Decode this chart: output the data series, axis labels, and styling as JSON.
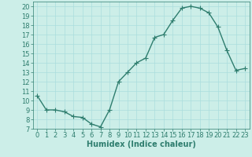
{
  "x": [
    0,
    1,
    2,
    3,
    4,
    5,
    6,
    7,
    8,
    9,
    10,
    11,
    12,
    13,
    14,
    15,
    16,
    17,
    18,
    19,
    20,
    21,
    22,
    23
  ],
  "y": [
    10.5,
    9.0,
    9.0,
    8.8,
    8.3,
    8.2,
    7.5,
    7.2,
    9.0,
    12.0,
    13.0,
    14.0,
    14.5,
    16.7,
    17.0,
    18.5,
    19.8,
    20.0,
    19.8,
    19.3,
    17.8,
    15.3,
    13.2,
    13.4
  ],
  "line_color": "#2e7d6e",
  "marker": "+",
  "bg_color": "#cceee8",
  "grid_color": "#aadddd",
  "xlabel": "Humidex (Indice chaleur)",
  "ylabel_ticks": [
    7,
    8,
    9,
    10,
    11,
    12,
    13,
    14,
    15,
    16,
    17,
    18,
    19,
    20
  ],
  "xlim": [
    -0.5,
    23.5
  ],
  "ylim": [
    7,
    20.5
  ],
  "xlabel_fontsize": 7,
  "tick_fontsize": 6,
  "line_width": 1.0,
  "marker_size": 4,
  "xticks": [
    0,
    1,
    2,
    3,
    4,
    5,
    6,
    7,
    8,
    9,
    10,
    11,
    12,
    13,
    14,
    15,
    16,
    17,
    18,
    19,
    20,
    21,
    22,
    23
  ]
}
